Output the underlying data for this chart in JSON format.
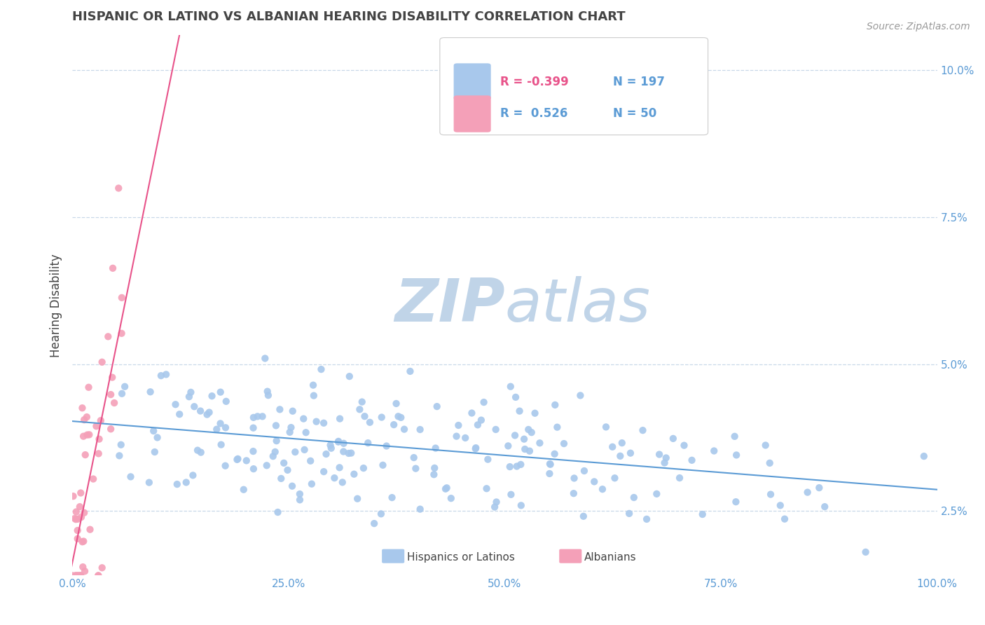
{
  "title": "HISPANIC OR LATINO VS ALBANIAN HEARING DISABILITY CORRELATION CHART",
  "source_text": "Source: ZipAtlas.com",
  "ylabel": "Hearing Disability",
  "legend_labels": [
    "Hispanics or Latinos",
    "Albanians"
  ],
  "r_blue": -0.399,
  "n_blue": 197,
  "r_pink": 0.526,
  "n_pink": 50,
  "blue_color": "#A8C8EC",
  "pink_color": "#F4A0B8",
  "blue_line_color": "#5B9BD5",
  "pink_line_color": "#E8538A",
  "title_color": "#444444",
  "axis_tick_color": "#5B9BD5",
  "legend_r_neg_color": "#E8538A",
  "legend_r_pos_color": "#5B9BD5",
  "legend_n_color": "#5B9BD5",
  "watermark_color_zip": "#C0D4E8",
  "watermark_color_atlas": "#C0D4E8",
  "background_color": "#FFFFFF",
  "grid_color": "#C8D8E8",
  "xmin": 0.0,
  "xmax": 1.0,
  "ymin": 0.014,
  "ymax": 0.106,
  "yticks": [
    0.025,
    0.05,
    0.075,
    0.1
  ],
  "ytick_labels": [
    "2.5%",
    "5.0%",
    "7.5%",
    "10.0%"
  ],
  "xticks": [
    0.0,
    0.25,
    0.5,
    0.75,
    1.0
  ],
  "xtick_labels": [
    "0.0%",
    "25.0%",
    "50.0%",
    "75.0%",
    "100.0%"
  ]
}
